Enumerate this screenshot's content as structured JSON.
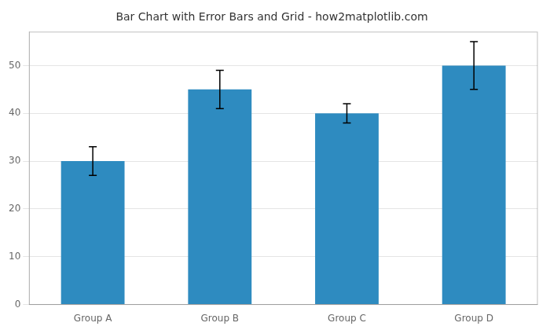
{
  "chart_data": {
    "type": "bar",
    "title": "Bar Chart with Error Bars and Grid - how2matplotlib.com",
    "categories": [
      "Group A",
      "Group B",
      "Group C",
      "Group D"
    ],
    "values": [
      30,
      45,
      40,
      50
    ],
    "errors": [
      3,
      4,
      2,
      5
    ],
    "color": "#2e8bc0",
    "ylim": [
      0,
      57
    ],
    "yticks": [
      0,
      10,
      20,
      30,
      40,
      50
    ],
    "grid": true
  }
}
